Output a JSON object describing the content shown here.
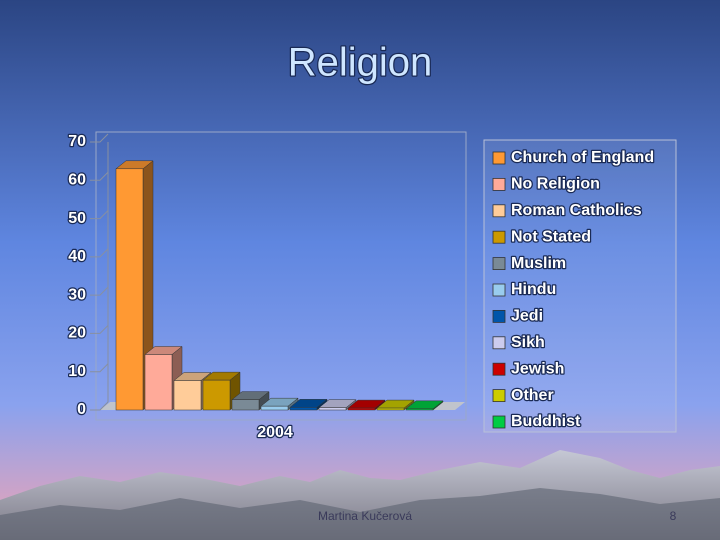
{
  "chart_data": {
    "type": "bar",
    "title": "Religion",
    "categories": [
      "2004"
    ],
    "series": [
      {
        "name": "Church of England",
        "color": "#ff9933",
        "values": [
          63
        ]
      },
      {
        "name": "No Religion",
        "color": "#ffaa99",
        "values": [
          14.5
        ]
      },
      {
        "name": "Roman Catholics",
        "color": "#ffcc99",
        "values": [
          7.7
        ]
      },
      {
        "name": "Not Stated",
        "color": "#cc9900",
        "values": [
          7.8
        ]
      },
      {
        "name": "Muslim",
        "color": "#7a8a96",
        "values": [
          2.7
        ]
      },
      {
        "name": "Hindu",
        "color": "#99ccee",
        "values": [
          1
        ]
      },
      {
        "name": "Jedi",
        "color": "#0055aa",
        "values": [
          0.7
        ]
      },
      {
        "name": "Sikh",
        "color": "#ccccee",
        "values": [
          0.6
        ]
      },
      {
        "name": "Jewish",
        "color": "#cc0000",
        "values": [
          0.5
        ]
      },
      {
        "name": "Other",
        "color": "#cccc00",
        "values": [
          0.5
        ]
      },
      {
        "name": "Buddhist",
        "color": "#00cc44",
        "values": [
          0.3
        ]
      }
    ],
    "ylim": [
      0,
      70
    ],
    "yticks": [
      0,
      10,
      20,
      30,
      40,
      50,
      60,
      70
    ],
    "grid": false,
    "legend": "right"
  },
  "footer": {
    "author": "Martina Kučerová",
    "page": "8"
  }
}
